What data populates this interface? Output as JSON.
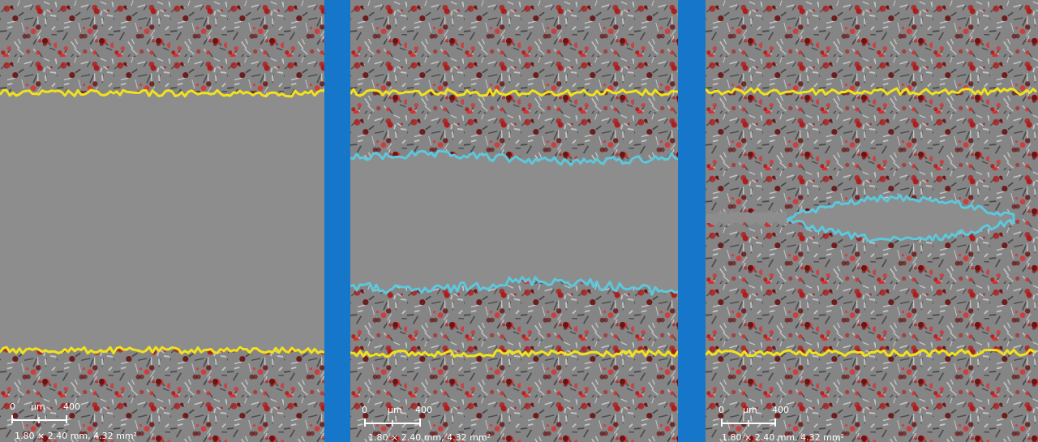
{
  "panels": [
    {
      "scale_min": "0",
      "scale_unit": "µm",
      "scale_max": "400",
      "dimensions": "1.80 × 2.40 mm, 4.32 mm²"
    },
    {
      "scale_min": "0",
      "scale_unit": "µm",
      "scale_max": "400",
      "dimensions": "1.80 × 2.40 mm, 4.32 mm²"
    },
    {
      "scale_min": "0",
      "scale_unit": "µm",
      "scale_max": "400",
      "dimensions": "1.80 × 2.40 mm, 4.32 mm²"
    }
  ]
}
